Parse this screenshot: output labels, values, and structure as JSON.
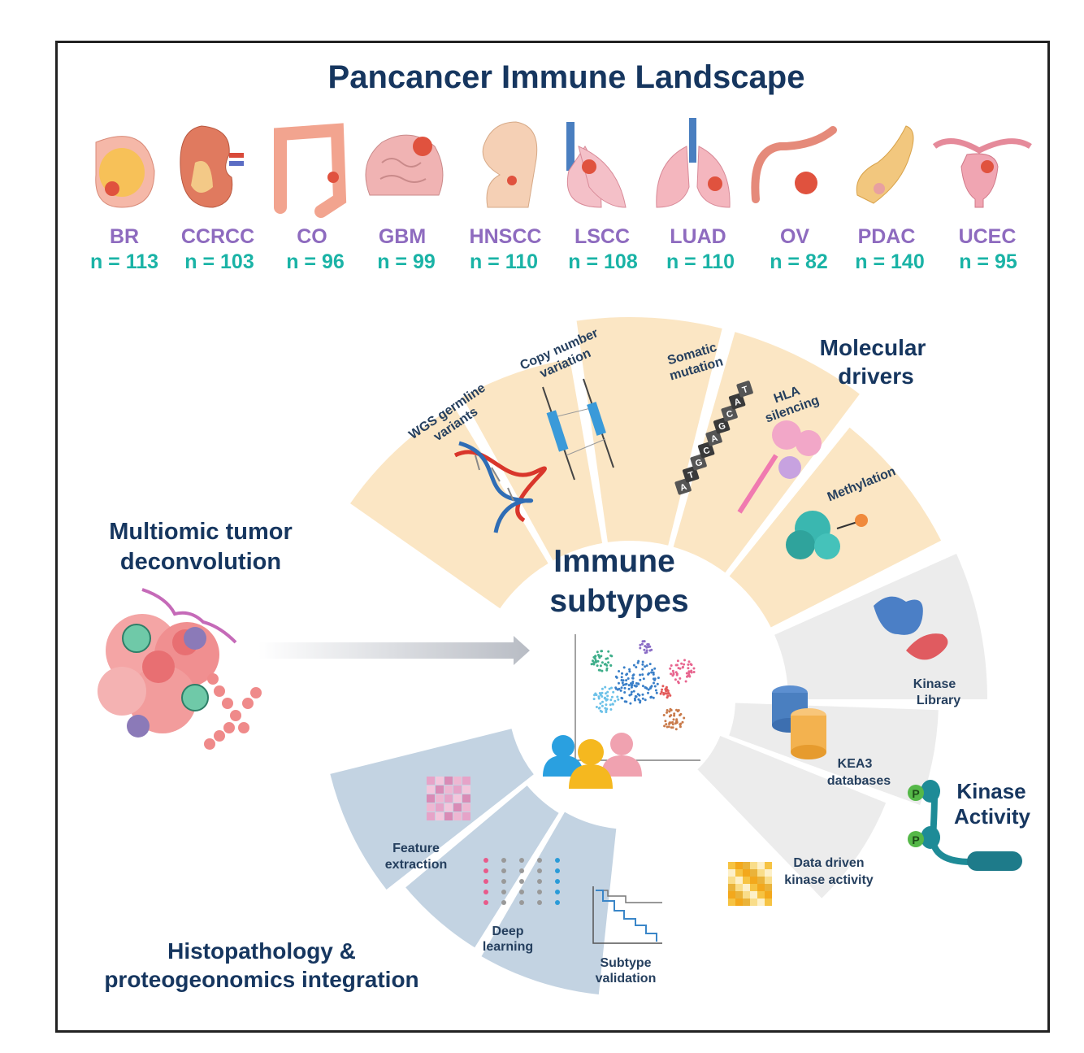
{
  "header": {
    "title": "Pancancer Immune Landscape"
  },
  "cancers": [
    {
      "code": "BR",
      "n": "n = 113",
      "icon": "breast-icon"
    },
    {
      "code": "CCRCC",
      "n": "n = 103",
      "icon": "kidney-icon"
    },
    {
      "code": "CO",
      "n": "n = 96",
      "icon": "colon-icon"
    },
    {
      "code": "GBM",
      "n": "n = 99",
      "icon": "brain-icon"
    },
    {
      "code": "HNSCC",
      "n": "n = 110",
      "icon": "head-neck-icon"
    },
    {
      "code": "LSCC",
      "n": "n = 108",
      "icon": "lung-icon"
    },
    {
      "code": "LUAD",
      "n": "n = 110",
      "icon": "lung-icon"
    },
    {
      "code": "OV",
      "n": "n = 82",
      "icon": "ovary-icon"
    },
    {
      "code": "PDAC",
      "n": "n = 140",
      "icon": "pancreas-icon"
    },
    {
      "code": "UCEC",
      "n": "n = 95",
      "icon": "uterus-icon"
    }
  ],
  "center": {
    "line1": "Immune",
    "line2": "subtypes"
  },
  "multiomic": {
    "line1": "Multiomic tumor",
    "line2": "deconvolution"
  },
  "molecular": {
    "title1": "Molecular",
    "title2": "drivers",
    "panels": [
      {
        "l1": "WGS germline",
        "l2": "variants"
      },
      {
        "l1": "Copy number",
        "l2": "variation"
      },
      {
        "l1": "Somatic",
        "l2": "mutation"
      },
      {
        "l1": "HLA",
        "l2": "silencing"
      },
      {
        "l1": "Methylation",
        "l2": ""
      }
    ],
    "dna_letters": [
      "A",
      "T",
      "G",
      "C",
      "A",
      "G",
      "C",
      "A",
      "T"
    ]
  },
  "kinase": {
    "title1": "Kinase",
    "title2": "Activity",
    "panels": [
      {
        "l1": "Kinase",
        "l2": "Library"
      },
      {
        "l1": "KEA3",
        "l2": "databases"
      },
      {
        "l1": "Data driven",
        "l2": "kinase activity"
      }
    ],
    "phospho_label": "P"
  },
  "histo": {
    "title1": "Histopathology &",
    "title2": "proteogeonomics integration",
    "panels": [
      {
        "l1": "Feature",
        "l2": "extraction"
      },
      {
        "l1": "Deep",
        "l2": "learning"
      },
      {
        "l1": "Subtype",
        "l2": "validation"
      }
    ]
  },
  "colors": {
    "molecular_panel": "#fbe6c4",
    "kinase_panel": "#ececec",
    "histo_panel": "#c3d3e2",
    "title": "#16365f",
    "cancer_name": "#8e6bbf",
    "cancer_n": "#1ab3a6"
  }
}
